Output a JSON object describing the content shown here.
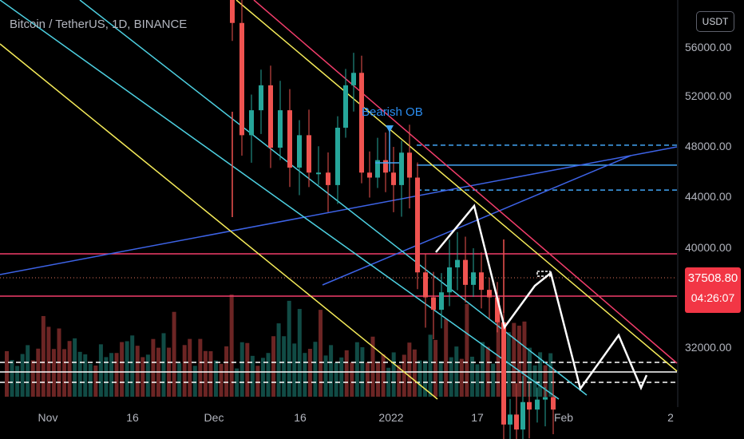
{
  "chart": {
    "title": "Bitcoin / TetherUS, 1D, BINANCE",
    "currency_button": "USDT",
    "current_price": "37508.80",
    "countdown": "04:26:07",
    "annotation": "Bearish OB",
    "colors": {
      "bull": "#26a69a",
      "bear": "#ef5350",
      "pink": "#f23d6b",
      "yellow": "#f5eb59",
      "cyan": "#4dd0e1",
      "blue": "#3d63e6",
      "lightblue": "#42a5f5",
      "white": "#ffffff"
    },
    "y_axis": [
      "56000.00",
      "52000.00",
      "48000.00",
      "44000.00",
      "40000.00",
      "32000.00"
    ],
    "x_axis": [
      "Nov",
      "16",
      "Dec",
      "16",
      "2022",
      "17",
      "Feb",
      "2"
    ]
  },
  "chart_data": {
    "type": "candlestick",
    "symbol": "Bitcoin / TetherUS",
    "interval": "1D",
    "exchange": "BINANCE",
    "ylim": [
      28000,
      59000
    ],
    "y_ticks": [
      56000,
      52000,
      48000,
      44000,
      40000,
      32000
    ],
    "x_ticks": [
      "Nov",
      "16",
      "Dec",
      "16",
      "2022",
      "17",
      "Feb",
      "2"
    ],
    "last_price": 37508.8,
    "horizontal_levels": [
      47300,
      48100,
      46300,
      39600,
      36100,
      30900,
      30400,
      29800
    ],
    "annotations": [
      "Bearish OB"
    ]
  }
}
